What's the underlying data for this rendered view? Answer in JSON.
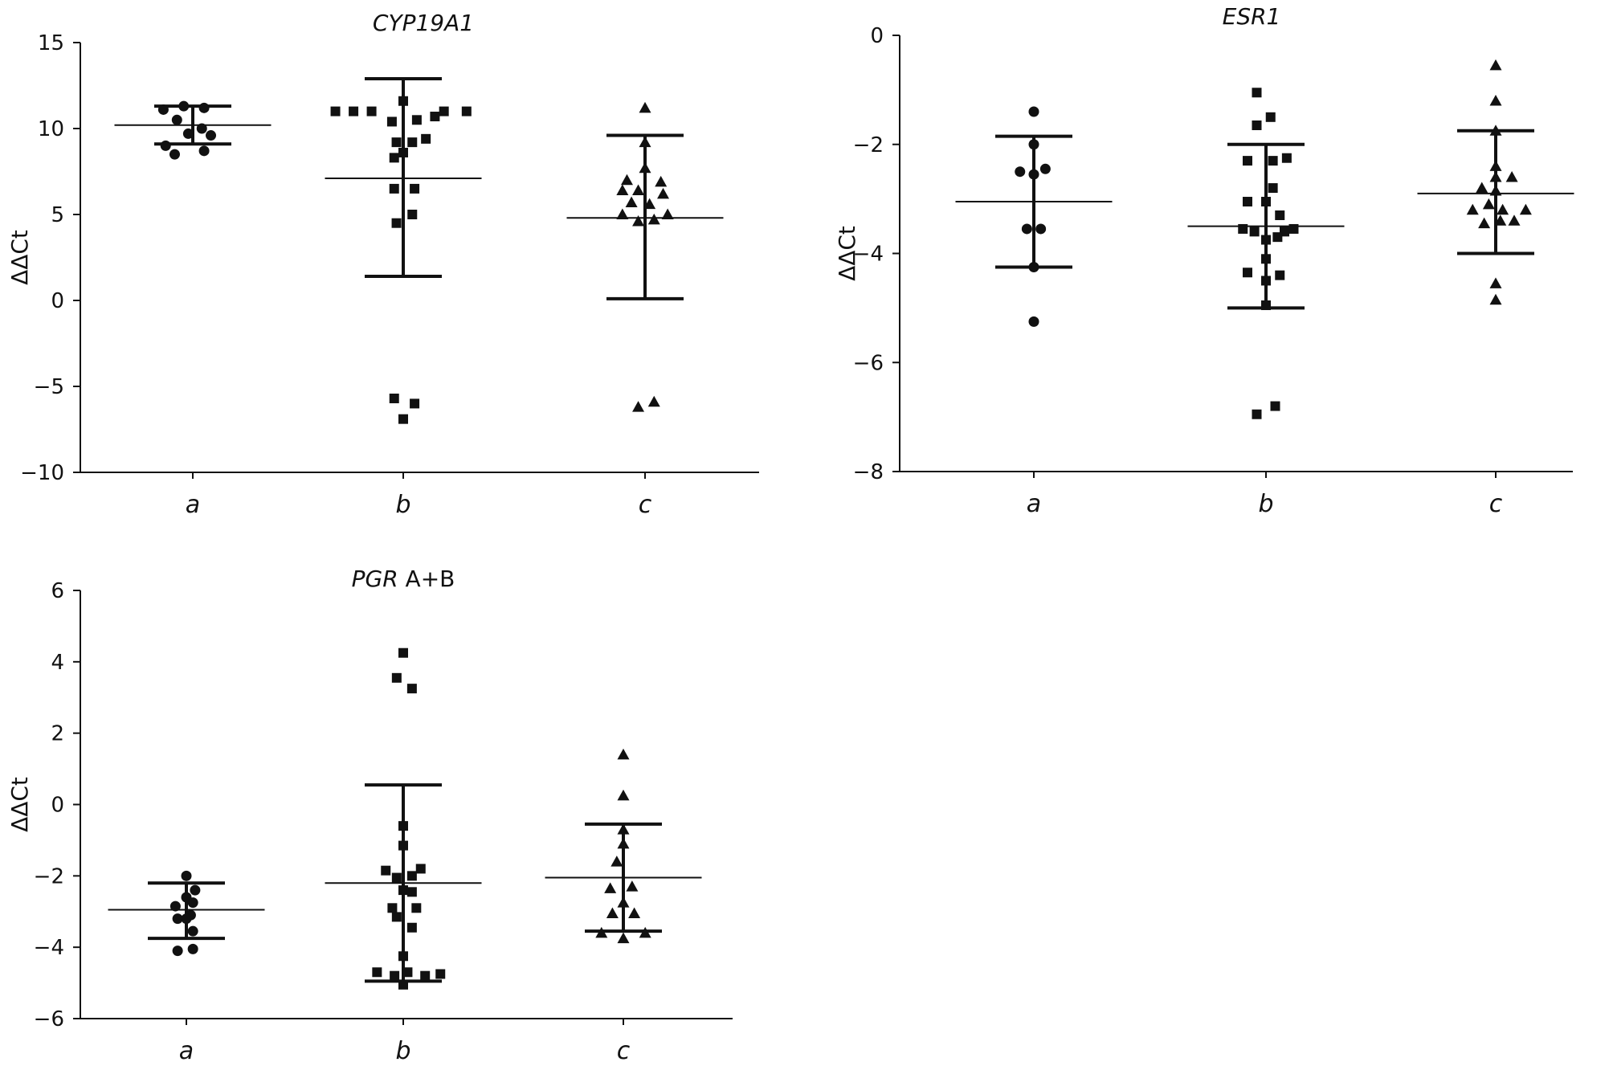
{
  "chart_data": [
    {
      "type": "scatter",
      "title": "CYP19A1",
      "title_suffix": "",
      "ylabel": "ΔΔCt",
      "ylim": [
        -10,
        15
      ],
      "yticks": [
        15,
        10,
        5,
        0,
        -5,
        -10
      ],
      "categories": [
        "a",
        "b",
        "c"
      ],
      "markers": [
        "circle",
        "square",
        "triangle"
      ],
      "groups": [
        {
          "category": "a",
          "mean": 10.2,
          "upper": 11.3,
          "lower": 9.1,
          "points": [
            [
              -0.13,
              11.1
            ],
            [
              -0.04,
              11.3
            ],
            [
              0.05,
              11.2
            ],
            [
              -0.07,
              10.5
            ],
            [
              0.04,
              10.0
            ],
            [
              -0.02,
              9.7
            ],
            [
              0.08,
              9.6
            ],
            [
              -0.12,
              9.0
            ],
            [
              0.05,
              8.7
            ],
            [
              -0.08,
              8.5
            ]
          ]
        },
        {
          "category": "b",
          "mean": 7.1,
          "upper": 12.9,
          "lower": 1.4,
          "points": [
            [
              -0.3,
              11.0
            ],
            [
              -0.22,
              11.0
            ],
            [
              -0.14,
              11.0
            ],
            [
              0.18,
              11.0
            ],
            [
              0.28,
              11.0
            ],
            [
              0.0,
              11.6
            ],
            [
              -0.05,
              10.4
            ],
            [
              0.06,
              10.5
            ],
            [
              0.14,
              10.7
            ],
            [
              -0.03,
              9.2
            ],
            [
              0.04,
              9.2
            ],
            [
              0.1,
              9.4
            ],
            [
              -0.04,
              8.3
            ],
            [
              0.0,
              8.6
            ],
            [
              -0.04,
              6.5
            ],
            [
              0.05,
              6.5
            ],
            [
              -0.03,
              4.5
            ],
            [
              0.04,
              5.0
            ],
            [
              -0.04,
              -5.7
            ],
            [
              0.05,
              -6.0
            ],
            [
              0.0,
              -6.9
            ]
          ]
        },
        {
          "category": "c",
          "mean": 4.8,
          "upper": 9.6,
          "lower": 0.1,
          "points": [
            [
              0.0,
              11.2
            ],
            [
              0.0,
              9.2
            ],
            [
              0.0,
              7.7
            ],
            [
              -0.08,
              7.0
            ],
            [
              0.07,
              6.9
            ],
            [
              -0.1,
              6.4
            ],
            [
              -0.03,
              6.4
            ],
            [
              0.08,
              6.2
            ],
            [
              -0.06,
              5.7
            ],
            [
              0.02,
              5.6
            ],
            [
              -0.1,
              5.0
            ],
            [
              0.1,
              5.0
            ],
            [
              0.04,
              4.7
            ],
            [
              -0.03,
              4.6
            ],
            [
              -0.03,
              -6.2
            ],
            [
              0.04,
              -5.9
            ]
          ]
        }
      ]
    },
    {
      "type": "scatter",
      "title": "ESR1",
      "title_suffix": "",
      "ylabel": "ΔΔCt",
      "ylim": [
        -8,
        0
      ],
      "yticks": [
        0,
        -2,
        -4,
        -6,
        -8
      ],
      "categories": [
        "a",
        "b",
        "c"
      ],
      "markers": [
        "circle",
        "square",
        "triangle"
      ],
      "groups": [
        {
          "category": "a",
          "mean": -3.05,
          "upper": -1.85,
          "lower": -4.25,
          "points": [
            [
              0.0,
              -1.4
            ],
            [
              0.0,
              -2.0
            ],
            [
              -0.06,
              -2.5
            ],
            [
              0.05,
              -2.45
            ],
            [
              0.0,
              -2.55
            ],
            [
              -0.03,
              -3.55
            ],
            [
              0.03,
              -3.55
            ],
            [
              0.0,
              -4.25
            ],
            [
              0.0,
              -5.25
            ]
          ]
        },
        {
          "category": "b",
          "mean": -3.5,
          "upper": -2.0,
          "lower": -5.0,
          "points": [
            [
              -0.04,
              -1.05
            ],
            [
              0.02,
              -1.5
            ],
            [
              -0.04,
              -1.65
            ],
            [
              -0.08,
              -2.3
            ],
            [
              0.03,
              -2.3
            ],
            [
              0.09,
              -2.25
            ],
            [
              0.03,
              -2.8
            ],
            [
              -0.08,
              -3.05
            ],
            [
              0.0,
              -3.05
            ],
            [
              0.06,
              -3.3
            ],
            [
              -0.1,
              -3.55
            ],
            [
              -0.05,
              -3.6
            ],
            [
              0.08,
              -3.6
            ],
            [
              0.12,
              -3.55
            ],
            [
              0.0,
              -3.75
            ],
            [
              0.05,
              -3.7
            ],
            [
              0.0,
              -4.1
            ],
            [
              -0.08,
              -4.35
            ],
            [
              0.06,
              -4.4
            ],
            [
              0.0,
              -4.5
            ],
            [
              0.0,
              -4.95
            ],
            [
              -0.04,
              -6.95
            ],
            [
              0.04,
              -6.8
            ]
          ]
        },
        {
          "category": "c",
          "mean": -2.9,
          "upper": -1.75,
          "lower": -4.0,
          "points": [
            [
              0.0,
              -0.55
            ],
            [
              0.0,
              -1.2
            ],
            [
              0.0,
              -1.75
            ],
            [
              0.0,
              -2.4
            ],
            [
              0.0,
              -2.6
            ],
            [
              0.07,
              -2.6
            ],
            [
              -0.06,
              -2.8
            ],
            [
              0.0,
              -2.85
            ],
            [
              -0.03,
              -3.1
            ],
            [
              -0.1,
              -3.2
            ],
            [
              0.03,
              -3.2
            ],
            [
              0.13,
              -3.2
            ],
            [
              -0.05,
              -3.45
            ],
            [
              0.02,
              -3.4
            ],
            [
              0.08,
              -3.4
            ],
            [
              0.0,
              -4.55
            ],
            [
              0.0,
              -4.85
            ]
          ]
        }
      ]
    },
    {
      "type": "scatter",
      "title": "PGR",
      "title_suffix": " A+B",
      "ylabel": "ΔΔCt",
      "ylim": [
        -6,
        6
      ],
      "yticks": [
        6,
        4,
        2,
        0,
        -2,
        -4,
        -6
      ],
      "categories": [
        "a",
        "b",
        "c"
      ],
      "markers": [
        "circle",
        "square",
        "triangle"
      ],
      "groups": [
        {
          "category": "a",
          "mean": -2.95,
          "upper": -2.2,
          "lower": -3.75,
          "points": [
            [
              0.0,
              -2.0
            ],
            [
              0.04,
              -2.4
            ],
            [
              0.0,
              -2.6
            ],
            [
              -0.05,
              -2.85
            ],
            [
              0.03,
              -2.75
            ],
            [
              -0.04,
              -3.2
            ],
            [
              0.02,
              -3.1
            ],
            [
              0.0,
              -3.2
            ],
            [
              0.03,
              -3.55
            ],
            [
              -0.04,
              -4.1
            ],
            [
              0.03,
              -4.05
            ]
          ]
        },
        {
          "category": "b",
          "mean": -2.2,
          "upper": 0.55,
          "lower": -4.95,
          "points": [
            [
              0.0,
              4.25
            ],
            [
              -0.03,
              3.55
            ],
            [
              0.04,
              3.25
            ],
            [
              0.0,
              -0.6
            ],
            [
              0.0,
              -1.15
            ],
            [
              -0.08,
              -1.85
            ],
            [
              0.08,
              -1.8
            ],
            [
              -0.03,
              -2.05
            ],
            [
              0.04,
              -2.0
            ],
            [
              0.0,
              -2.4
            ],
            [
              0.04,
              -2.45
            ],
            [
              -0.05,
              -2.9
            ],
            [
              0.06,
              -2.9
            ],
            [
              -0.03,
              -3.15
            ],
            [
              0.04,
              -3.45
            ],
            [
              0.0,
              -4.25
            ],
            [
              -0.12,
              -4.7
            ],
            [
              -0.04,
              -4.8
            ],
            [
              0.02,
              -4.7
            ],
            [
              0.1,
              -4.8
            ],
            [
              0.17,
              -4.75
            ],
            [
              0.0,
              -5.05
            ]
          ]
        },
        {
          "category": "c",
          "mean": -2.05,
          "upper": -0.55,
          "lower": -3.55,
          "points": [
            [
              0.0,
              1.4
            ],
            [
              0.0,
              0.25
            ],
            [
              0.0,
              -0.7
            ],
            [
              0.0,
              -1.1
            ],
            [
              -0.03,
              -1.6
            ],
            [
              -0.06,
              -2.35
            ],
            [
              0.04,
              -2.3
            ],
            [
              0.0,
              -2.75
            ],
            [
              -0.05,
              -3.05
            ],
            [
              0.05,
              -3.05
            ],
            [
              -0.1,
              -3.6
            ],
            [
              0.0,
              -3.75
            ],
            [
              0.1,
              -3.6
            ]
          ]
        }
      ]
    }
  ]
}
